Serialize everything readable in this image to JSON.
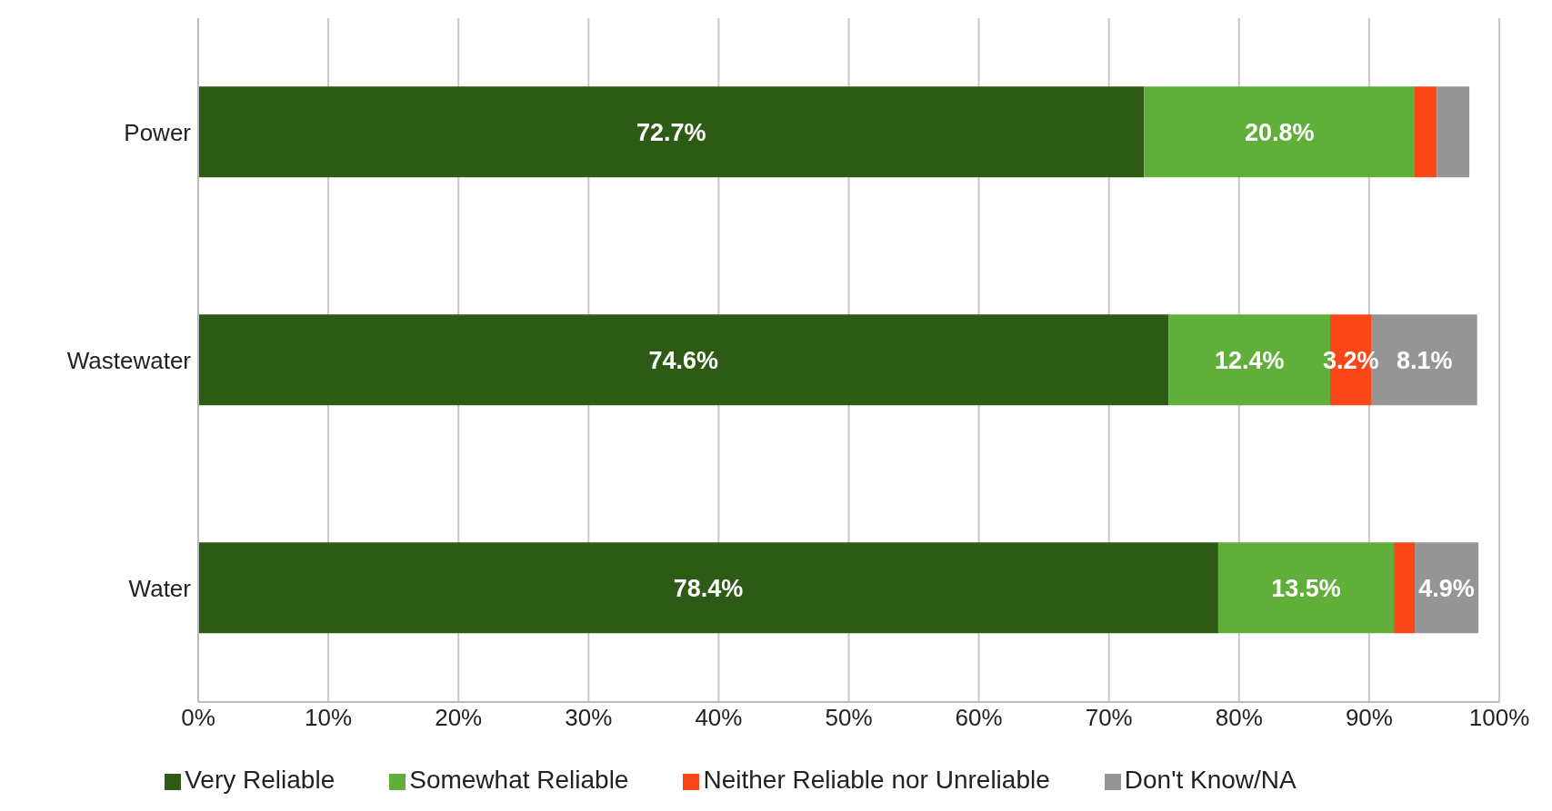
{
  "chart_data": {
    "type": "bar",
    "orientation": "horizontal",
    "stacked": true,
    "categories": [
      "Power",
      "Wastewater",
      "Water"
    ],
    "series": [
      {
        "name": "Very Reliable",
        "color": "#2d5a15",
        "values": [
          72.7,
          74.6,
          78.4
        ],
        "value_labels": [
          "72.7%",
          "74.6%",
          "78.4%"
        ]
      },
      {
        "name": "Somewhat Reliable",
        "color": "#5faf3a",
        "values": [
          20.8,
          12.4,
          13.5
        ],
        "value_labels": [
          "20.8%",
          "12.4%",
          "13.5%"
        ]
      },
      {
        "name": "Neither Reliable nor Unreliable",
        "color": "#fb4717",
        "values": [
          1.7,
          3.2,
          1.6
        ],
        "value_labels": [
          null,
          "3.2%",
          null
        ]
      },
      {
        "name": "Don't Know/NA",
        "color": "#959595",
        "values": [
          2.5,
          8.1,
          4.9
        ],
        "value_labels": [
          null,
          "8.1%",
          "4.9%"
        ]
      }
    ],
    "xlim": [
      0,
      100
    ],
    "xticks": [
      {
        "value": 0,
        "label": "0%"
      },
      {
        "value": 10,
        "label": "10%"
      },
      {
        "value": 20,
        "label": "20%"
      },
      {
        "value": 30,
        "label": "30%"
      },
      {
        "value": 40,
        "label": "40%"
      },
      {
        "value": 50,
        "label": "50%"
      },
      {
        "value": 60,
        "label": "60%"
      },
      {
        "value": 70,
        "label": "70%"
      },
      {
        "value": 80,
        "label": "80%"
      },
      {
        "value": 90,
        "label": "90%"
      },
      {
        "value": 100,
        "label": "100%"
      }
    ],
    "grid": "x",
    "legend": "bottom"
  }
}
